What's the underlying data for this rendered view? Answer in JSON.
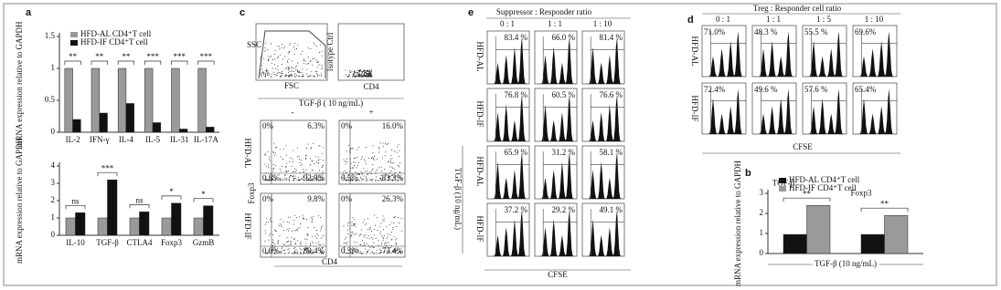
{
  "chart_data": [
    {
      "type": "bar",
      "panel": "a",
      "y_label": "mRNA expression relative to GAPDH",
      "categories": [
        "IL-2",
        "IFN-γ",
        "IL-4",
        "IL-5",
        "IL-31",
        "IL-17A"
      ],
      "series": [
        {
          "name": "HFD-AL CD4⁺T cell",
          "color": "#9a9a9a",
          "values": [
            1.0,
            1.0,
            1.0,
            1.0,
            1.0,
            1.0
          ]
        },
        {
          "name": "HFD-IF CD4⁺T cell",
          "color": "#111111",
          "values": [
            0.2,
            0.3,
            0.45,
            0.15,
            0.05,
            0.08
          ]
        }
      ],
      "significance": [
        "**",
        "**",
        "**",
        "***",
        "***",
        "***"
      ],
      "ylim": [
        0,
        1.5
      ],
      "yticks": [
        0,
        0.5,
        1,
        1.5
      ],
      "legend": "upper left"
    },
    {
      "type": "bar",
      "y_label": "mRNA expression relative to GAPDH",
      "categories": [
        "IL-10",
        "TGF-β",
        "CTLA4",
        "Foxp3",
        "GzmB"
      ],
      "series": [
        {
          "color": "#9a9a9a",
          "values": [
            1.0,
            1.0,
            1.0,
            1.0,
            1.0
          ]
        },
        {
          "color": "#111111",
          "values": [
            1.3,
            3.2,
            1.35,
            1.85,
            1.7
          ]
        }
      ],
      "significance": [
        "ns",
        "***",
        "ns",
        "*",
        "*"
      ],
      "ylim": [
        0,
        4
      ],
      "yticks": [
        0,
        1,
        2,
        3,
        4
      ]
    },
    {
      "type": "bar",
      "panel": "b",
      "y_label": "mRNA expression relative to GAPDH",
      "x_label": "TGF-β (10 ng/mL)",
      "categories": [
        "TGF-β",
        "Foxp3"
      ],
      "series": [
        {
          "name": "HFD-AL CD4⁺T cell",
          "color": "#111111",
          "values": [
            0.95,
            0.95
          ]
        },
        {
          "name": "HFD-IF CD4⁺T cell",
          "color": "#9a9a9a",
          "values": [
            2.4,
            1.9
          ]
        }
      ],
      "significance": [
        "**",
        "**"
      ],
      "ylim": [
        0,
        3
      ],
      "yticks": [
        0,
        1,
        2,
        3
      ],
      "legend": "upper left"
    }
  ],
  "panel_c": {
    "label": "c",
    "gate_x": "FSC",
    "gate_y": "SSC",
    "iso_x": "CD4",
    "iso_y": "Isotype Ctrl",
    "treatment": "TGF-β ( 10 ng/mL)",
    "columns": [
      "-",
      "+"
    ],
    "rows": [
      "HFD-AL",
      "HFD-IF"
    ],
    "y_axis": "Foxp3",
    "x_axis": "CD4",
    "quadrants": [
      [
        [
          "0%",
          "6.3%",
          "0.8%",
          "92.9%"
        ],
        [
          "0%",
          "16.0%",
          "0.5%",
          "83.3%"
        ]
      ],
      [
        [
          "0%",
          "9.8%",
          "0.8%",
          "89.4%"
        ],
        [
          "0%",
          "26.3%",
          "0.3%",
          "73.4%"
        ]
      ]
    ]
  },
  "panel_e": {
    "label": "e",
    "title": "Suppressor : Responder ratio",
    "columns": [
      "0 : 1",
      "1 : 1",
      "1 : 10"
    ],
    "rows": [
      "HFD-AL",
      "HFD-IF",
      "HFD-AL",
      "HFD-IF"
    ],
    "side": "TGF-β (10 ng/mL)",
    "x_axis": "CFSE",
    "percents": [
      [
        "83.4 %",
        "66.0 %",
        "81.4 %"
      ],
      [
        "76.8 %",
        "60.5 %",
        "76.6 %"
      ],
      [
        "65.9 %",
        "31.2 %",
        "58.1 %"
      ],
      [
        "37.2 %",
        "29.2 %",
        "49.1 %"
      ]
    ]
  },
  "panel_d": {
    "label": "d",
    "title": "Treg : Responder cell ratio",
    "columns": [
      "0 : 1",
      "1 : 1",
      "1 : 5",
      "1 : 10"
    ],
    "rows": [
      "HFD-AL",
      "HFD-IF"
    ],
    "x_axis": "CFSE",
    "percents": [
      [
        "71.0%",
        "48.3 %",
        "55.5 %",
        "69.6%"
      ],
      [
        "72.4%",
        "49.6 %",
        "57.6 %",
        "65.4%"
      ]
    ]
  }
}
